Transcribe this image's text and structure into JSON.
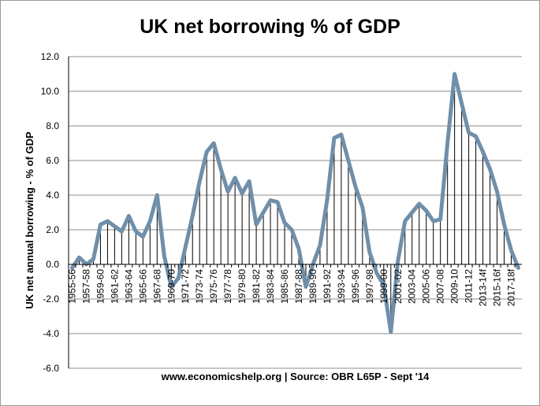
{
  "chart_data": {
    "type": "line",
    "title": "UK net borrowing % of GDP",
    "xlabel": "",
    "ylabel": "UK net annual borrowing - % of GDP",
    "source_note": "www.economicshelp.org | Source: OBR L65P - Sept '14",
    "ylim": [
      -6.0,
      12.0
    ],
    "yticks": [
      "12.0",
      "10.0",
      "8.0",
      "6.0",
      "4.0",
      "2.0",
      "0.0",
      "-2.0",
      "-4.0",
      "-6.0"
    ],
    "ytick_values": [
      12,
      10,
      8,
      6,
      4,
      2,
      0,
      -2,
      -4,
      -6
    ],
    "grid": true,
    "x": [
      "1955-56",
      "1956-57",
      "1957-58",
      "1958-59",
      "1959-60",
      "1960-61",
      "1961-62",
      "1962-63",
      "1963-64",
      "1964-65",
      "1965-66",
      "1966-67",
      "1967-68",
      "1968-69",
      "1969-70",
      "1970-71",
      "1971-72",
      "1972-73",
      "1973-74",
      "1974-75",
      "1975-76",
      "1976-77",
      "1977-78",
      "1978-79",
      "1979-80",
      "1980-81",
      "1981-82",
      "1982-83",
      "1983-84",
      "1984-85",
      "1985-86",
      "1986-87",
      "1987-88",
      "1988-89",
      "1989-90",
      "1990-91",
      "1991-92",
      "1992-93",
      "1993-94",
      "1994-95",
      "1995-96",
      "1996-97",
      "1997-98",
      "1998-99",
      "1999-00",
      "2000-01",
      "2001-02",
      "2002-03",
      "2003-04",
      "2004-05",
      "2005-06",
      "2006-07",
      "2007-08",
      "2008-09",
      "2009-10",
      "2010-11",
      "2011-12",
      "2012-13",
      "2013-14f",
      "2014-15f",
      "2015-16f",
      "2016-17f",
      "2017-18f",
      "2018-19f"
    ],
    "xtick_labels_shown": [
      "1955-56",
      "1957-58",
      "1959-60",
      "1961-62",
      "1963-64",
      "1965-66",
      "1967-68",
      "1969-70",
      "1971-72",
      "1973-74",
      "1975-76",
      "1977-78",
      "1979-80",
      "1981-82",
      "1983-84",
      "1985-86",
      "1987-88",
      "1989-90",
      "1991-92",
      "1993-94",
      "1995-96",
      "1997-98",
      "1999-00",
      "2001-02",
      "2003-04",
      "2005-06",
      "2007-08",
      "2009-10",
      "2011-12",
      "2013-14f",
      "2015-16f",
      "2017-18f"
    ],
    "series": [
      {
        "name": "UK net borrowing % of GDP",
        "color": "#6f8faa",
        "values": [
          -0.2,
          0.4,
          0.0,
          0.3,
          2.3,
          2.5,
          2.2,
          1.9,
          2.8,
          1.9,
          1.6,
          2.5,
          4.0,
          0.5,
          -1.3,
          -0.8,
          1.0,
          2.8,
          4.8,
          6.5,
          7.0,
          5.5,
          4.2,
          5.0,
          4.1,
          4.8,
          2.3,
          3.0,
          3.7,
          3.6,
          2.4,
          2.0,
          0.9,
          -1.3,
          0.0,
          1.1,
          3.7,
          7.3,
          7.5,
          6.0,
          4.5,
          3.3,
          0.7,
          -0.5,
          -1.2,
          -3.9,
          0.2,
          2.5,
          3.0,
          3.5,
          3.1,
          2.5,
          2.6,
          7.0,
          11.0,
          9.3,
          7.6,
          7.4,
          6.5,
          5.5,
          4.2,
          2.3,
          0.8,
          -0.2
        ]
      }
    ]
  }
}
